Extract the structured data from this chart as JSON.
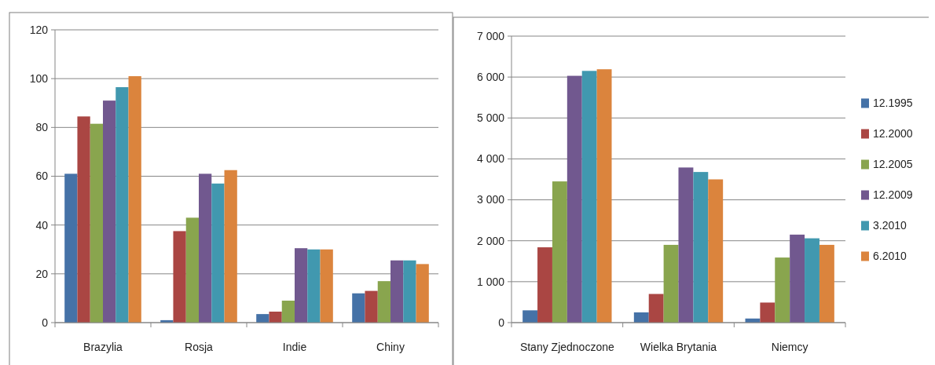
{
  "chart_data": [
    {
      "type": "bar",
      "categories": [
        "Brazylia",
        "Rosja",
        "Indie",
        "Chiny"
      ],
      "ylim": [
        0,
        120
      ],
      "yticks": [
        0,
        20,
        40,
        60,
        80,
        100,
        120
      ],
      "grid": "y",
      "legend": false,
      "series": [
        {
          "color": "#4572a7",
          "values": [
            61,
            1,
            3.5,
            12
          ]
        },
        {
          "color": "#aa4643",
          "values": [
            84.5,
            37.5,
            4.5,
            13
          ]
        },
        {
          "color": "#89a54e",
          "values": [
            81.5,
            43,
            9,
            17
          ]
        },
        {
          "color": "#71588f",
          "values": [
            91,
            61,
            30.5,
            25.5
          ]
        },
        {
          "color": "#4198af",
          "values": [
            96.5,
            57,
            30,
            25.5
          ]
        },
        {
          "color": "#db843d",
          "values": [
            101,
            62.5,
            30,
            24
          ]
        }
      ]
    },
    {
      "type": "bar",
      "categories": [
        "Stany Zjednoczone",
        "Wielka Brytania",
        "Niemcy"
      ],
      "ylim": [
        0,
        7000
      ],
      "yticks": [
        0,
        {
          "value": 1000,
          "label": "1 000"
        },
        {
          "value": 2000,
          "label": "2 000"
        },
        {
          "value": 3000,
          "label": "3 000"
        },
        {
          "value": 4000,
          "label": "4 000"
        },
        {
          "value": 5000,
          "label": "5 000"
        },
        {
          "value": 6000,
          "label": "6 000"
        },
        {
          "value": 7000,
          "label": "7 000"
        }
      ],
      "grid": "y",
      "legend": "right",
      "series": [
        {
          "name": "12.1995",
          "color": "#4572a7",
          "values": [
            300,
            250,
            100
          ]
        },
        {
          "name": "12.2000",
          "color": "#aa4643",
          "values": [
            1840,
            700,
            490
          ]
        },
        {
          "name": "12.2005",
          "color": "#89a54e",
          "values": [
            3450,
            1900,
            1590
          ]
        },
        {
          "name": "12.2009",
          "color": "#71588f",
          "values": [
            6030,
            3790,
            2150
          ]
        },
        {
          "name": "3.2010",
          "color": "#4198af",
          "values": [
            6150,
            3680,
            2060
          ]
        },
        {
          "name": "6.2010",
          "color": "#db843d",
          "values": [
            6190,
            3500,
            1900
          ]
        }
      ]
    }
  ]
}
